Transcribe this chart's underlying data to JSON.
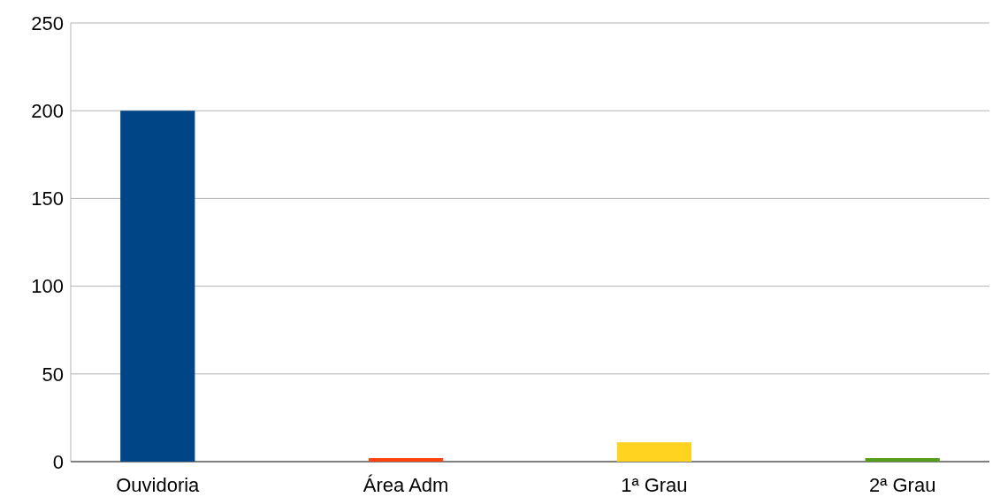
{
  "chart_data": {
    "type": "bar",
    "categories": [
      "Ouvidoria",
      "Área Adm",
      "1ª Grau",
      "2ª Grau"
    ],
    "values": [
      200,
      2,
      11,
      2
    ],
    "colors": [
      "#004586",
      "#ff420e",
      "#ffd320",
      "#579d1c"
    ],
    "ylim": [
      0,
      250
    ],
    "yticks": [
      0,
      50,
      100,
      150,
      200,
      250
    ],
    "grid": "y"
  }
}
